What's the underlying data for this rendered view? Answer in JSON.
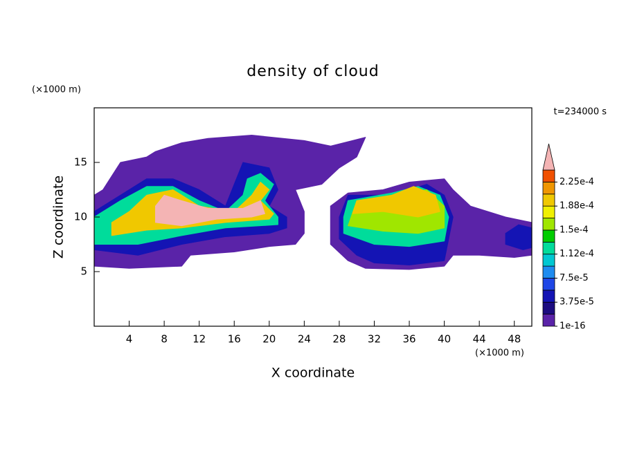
{
  "chart_data": {
    "type": "contour",
    "title": "density of cloud",
    "annotation": "t=234000 s",
    "x_label": "X coordinate",
    "y_label": "Z coordinate",
    "x_unit": "(×1000 m)",
    "y_unit": "(×1000 m)",
    "xlim": [
      0,
      50
    ],
    "ylim": [
      0,
      20
    ],
    "xticks": [
      4,
      8,
      12,
      16,
      20,
      24,
      28,
      32,
      36,
      40,
      44,
      48
    ],
    "yticks": [
      5,
      10,
      15
    ],
    "colorbar": {
      "levels": [
        1e-16,
        1.875e-05,
        3.75e-05,
        5.625e-05,
        7.5e-05,
        9.375e-05,
        0.0001125,
        0.00013125,
        0.00015,
        0.00016875,
        0.0001875,
        0.00020625,
        0.000225,
        0.00024375
      ],
      "colors": [
        "#5a23a8",
        "#1c0c80",
        "#1414b4",
        "#1e46e6",
        "#1e8cf0",
        "#00c8d2",
        "#00dc9b",
        "#00cd00",
        "#a0e600",
        "#f0f000",
        "#f0c800",
        "#f09600",
        "#f05000",
        "#e61414"
      ],
      "extend_color": "#f4b4b4",
      "ticks": [
        {
          "value": 1e-16,
          "label": "1e-16"
        },
        {
          "value": 3.75e-05,
          "label": "3.75e-5"
        },
        {
          "value": 7.5e-05,
          "label": "7.5e-5"
        },
        {
          "value": 0.0001125,
          "label": "1.12e-4"
        },
        {
          "value": 0.00015,
          "label": "1.5e-4"
        },
        {
          "value": 0.0001875,
          "label": "1.88e-4"
        },
        {
          "value": 0.000225,
          "label": "2.25e-4"
        }
      ]
    },
    "contours": [
      {
        "level": 1e-16,
        "x": [
          0,
          4,
          10,
          11,
          16,
          20,
          23,
          24,
          24,
          23,
          26,
          28,
          30,
          31,
          27,
          24,
          18,
          13,
          10,
          7,
          6,
          3,
          1,
          0
        ],
        "y": [
          5.5,
          5.3,
          5.5,
          6.5,
          6.8,
          7.3,
          7.5,
          8.5,
          10.5,
          12.5,
          13,
          14.5,
          15.5,
          17.3,
          16.5,
          17,
          17.5,
          17.2,
          16.8,
          16,
          15.5,
          15,
          12.5,
          12
        ]
      },
      {
        "level": 1e-16,
        "x": [
          27,
          29,
          31,
          36,
          40,
          41,
          44,
          48,
          50,
          50,
          47,
          43,
          41,
          40,
          36,
          33,
          29,
          27
        ],
        "y": [
          7.5,
          6,
          5.3,
          5.2,
          5.5,
          6.5,
          6.5,
          6.3,
          6.5,
          9.5,
          10,
          11,
          12.5,
          13.5,
          13.2,
          12.5,
          12.2,
          11
        ]
      },
      {
        "level": 3.75e-05,
        "x": [
          0,
          5,
          10,
          15,
          20,
          22,
          22,
          20,
          21,
          20,
          17,
          16,
          15,
          12,
          9,
          6,
          3,
          0
        ],
        "y": [
          7,
          6.5,
          7.5,
          8.2,
          8.5,
          9,
          10,
          11,
          12.5,
          14.5,
          15,
          13,
          11,
          12.5,
          13.5,
          13.5,
          12,
          10.5
        ]
      },
      {
        "level": 0.0001125,
        "x": [
          0,
          5,
          10,
          15,
          21,
          21,
          19.5,
          20.5,
          19,
          17.5,
          17,
          15,
          12,
          9,
          6,
          3,
          0
        ],
        "y": [
          7.5,
          7.5,
          8.3,
          9,
          9.3,
          10,
          11.5,
          13,
          14,
          13.5,
          12,
          10.5,
          11.5,
          12.8,
          12.8,
          11.5,
          10
        ]
      },
      {
        "level": 0.0001875,
        "x": [
          2,
          6,
          10,
          15,
          20,
          20.5,
          19,
          20,
          19,
          18,
          16,
          12,
          9,
          6,
          4,
          2
        ],
        "y": [
          8.3,
          8.8,
          9,
          9.5,
          9.8,
          10.3,
          11.5,
          12.5,
          13.2,
          12,
          10.5,
          11,
          12.5,
          12,
          10.5,
          9.5
        ]
      },
      {
        "level": 0.00024375,
        "x": [
          7,
          10,
          14,
          18,
          19.5,
          19,
          17,
          13,
          10,
          8,
          7
        ],
        "y": [
          9.5,
          9.2,
          9.8,
          10,
          10.3,
          11.5,
          10.8,
          10.8,
          11.5,
          12,
          11
        ]
      },
      {
        "level": 3.75e-05,
        "x": [
          28,
          30,
          32,
          36,
          40,
          40.5,
          41,
          40,
          38,
          36,
          33,
          29,
          28
        ],
        "y": [
          8,
          6.5,
          5.8,
          5.6,
          6,
          8,
          10,
          12,
          13,
          12.5,
          12,
          12,
          10
        ]
      },
      {
        "level": 0.0001125,
        "x": [
          28.5,
          32,
          36,
          40,
          40.5,
          39.5,
          37,
          34,
          29,
          28.5
        ],
        "y": [
          8.5,
          7.5,
          7.3,
          7.8,
          10,
          12,
          12.8,
          12.2,
          11.5,
          10
        ]
      },
      {
        "level": 0.00015,
        "x": [
          29,
          33,
          37,
          40,
          40,
          38,
          35,
          30
        ],
        "y": [
          9.2,
          8.7,
          8.5,
          9,
          11,
          12.5,
          12,
          11.5
        ]
      },
      {
        "level": 0.0001875,
        "x": [
          29.5,
          33,
          37,
          39.5,
          39,
          36.5,
          34,
          30
        ],
        "y": [
          10.3,
          10.5,
          10,
          10.5,
          12,
          12.8,
          12,
          11.5
        ]
      },
      {
        "level": 3.75e-05,
        "x": [
          47,
          49,
          50,
          50,
          48.5,
          47
        ],
        "y": [
          7.5,
          7,
          7.2,
          9,
          9.3,
          8.5
        ]
      }
    ]
  }
}
